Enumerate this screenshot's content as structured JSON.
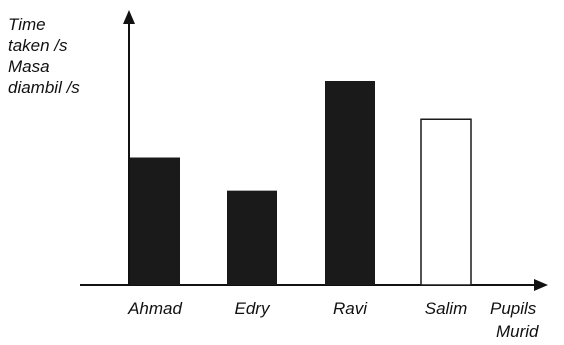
{
  "chart_data": {
    "type": "bar",
    "ylabel_lines": [
      "Time",
      "taken /s",
      "Masa",
      "diambil /s"
    ],
    "xlabel_lines": [
      "Pupils",
      "Murid"
    ],
    "categories": [
      "Ahmad",
      "Edry",
      "Ravi",
      "Salim"
    ],
    "values": [
      5.0,
      3.7,
      8.0,
      6.5
    ],
    "ylim": [
      0,
      10
    ],
    "bar_styles": [
      "filled",
      "filled",
      "filled",
      "outline"
    ],
    "grid": false,
    "legend": false
  },
  "colors": {
    "bar_fill": "#1a1a1a",
    "bar_outline": "#1a1a1a",
    "axis": "#111111"
  }
}
